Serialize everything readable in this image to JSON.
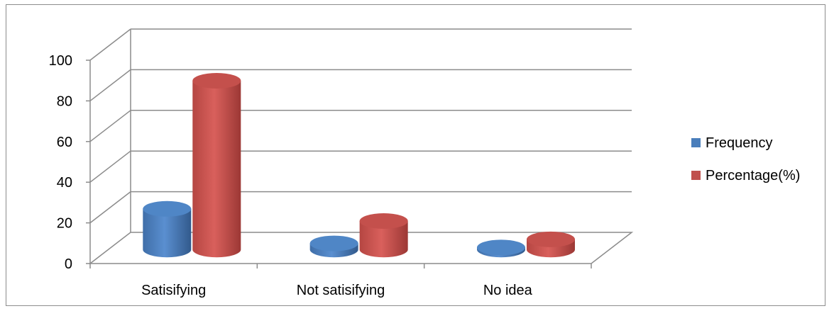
{
  "chart_data": {
    "type": "bar",
    "variant": "3d-cylinder",
    "categories": [
      "Satisifying",
      "Not satisifying",
      "No idea"
    ],
    "series": [
      {
        "name": "Frequency",
        "values": [
          20,
          3,
          1
        ],
        "color": "#4a7ebb"
      },
      {
        "name": "Percentage(%)",
        "values": [
          83,
          14,
          5
        ],
        "color": "#c0504d"
      }
    ],
    "y_ticks": [
      "0",
      "20",
      "40",
      "60",
      "80",
      "100"
    ],
    "ylim": [
      0,
      100
    ],
    "grid": true,
    "legend_position": "right"
  }
}
